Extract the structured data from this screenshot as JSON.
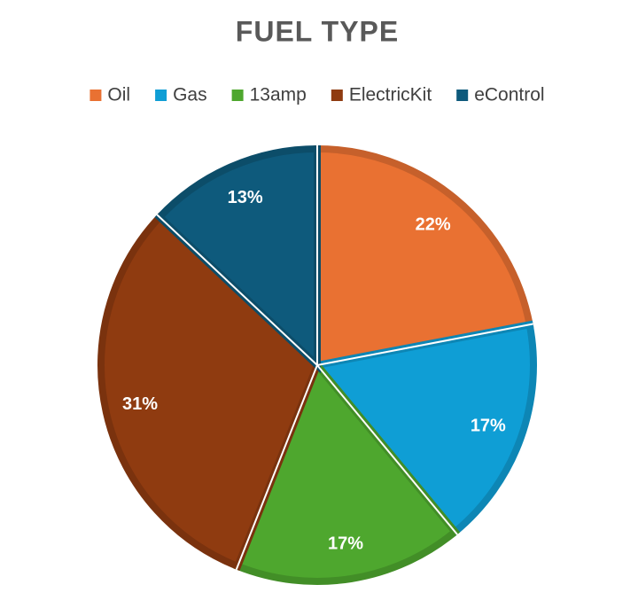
{
  "chart_data": {
    "type": "pie",
    "title": "FUEL TYPE",
    "categories": [
      "Oil",
      "Gas",
      "13amp",
      "ElectricKit",
      "eControl"
    ],
    "values": [
      22,
      17,
      17,
      31,
      13
    ],
    "value_labels": [
      "22%",
      "17%",
      "17%",
      "31%",
      "13%"
    ],
    "colors": [
      "#e97132",
      "#0f9ed5",
      "#4ea72e",
      "#8f3b10",
      "#0e5a7c"
    ],
    "legend": "top"
  }
}
